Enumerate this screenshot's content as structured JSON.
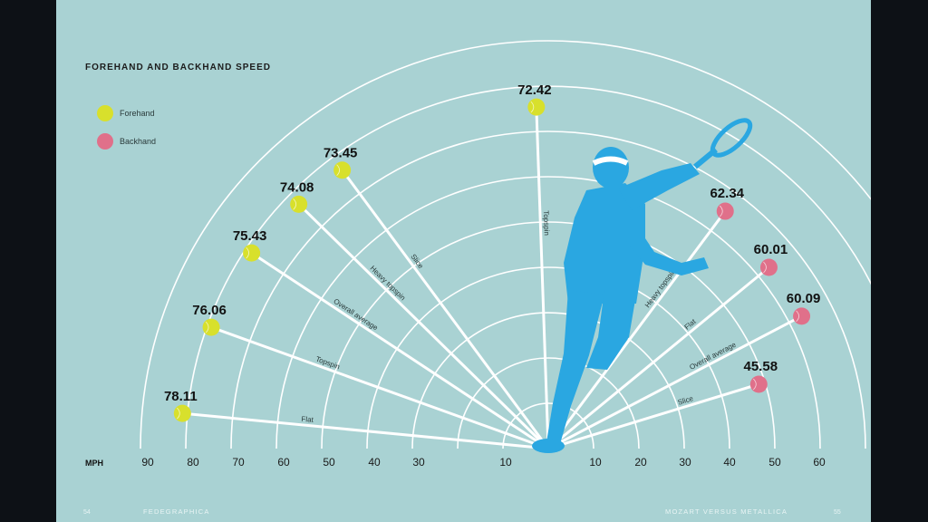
{
  "chart_data": {
    "type": "radial",
    "title": "FOREHAND AND BACKHAND SPEED",
    "unit_label": "MPH",
    "legend": [
      {
        "name": "Forehand",
        "color": "#d8e02c"
      },
      {
        "name": "Backhand",
        "color": "#e0708a"
      }
    ],
    "left_ticks": [
      "90",
      "80",
      "70",
      "60",
      "50",
      "40",
      "30",
      "10"
    ],
    "right_ticks": [
      "10",
      "20",
      "30",
      "40",
      "50",
      "60"
    ],
    "series": [
      {
        "name": "Forehand",
        "points": [
          {
            "shot": "Flat",
            "mph": 78.11
          },
          {
            "shot": "Topspin",
            "mph": 76.06
          },
          {
            "shot": "Overall average",
            "mph": 75.43
          },
          {
            "shot": "Heavy topspin",
            "mph": 74.08
          },
          {
            "shot": "Slice",
            "mph": 73.45
          },
          {
            "shot": "Topspin",
            "mph": 72.42
          }
        ]
      },
      {
        "name": "Backhand",
        "points": [
          {
            "shot": "Heavy topspin",
            "mph": 62.34
          },
          {
            "shot": "Flat",
            "mph": 60.01
          },
          {
            "shot": "Overall average",
            "mph": 60.09
          },
          {
            "shot": "Slice",
            "mph": 45.58
          }
        ]
      }
    ]
  },
  "footer": {
    "page_left": "54",
    "section_left": "FEDEGRAPHICA",
    "section_right": "MOZART VERSUS METALLICA",
    "page_right": "55"
  }
}
